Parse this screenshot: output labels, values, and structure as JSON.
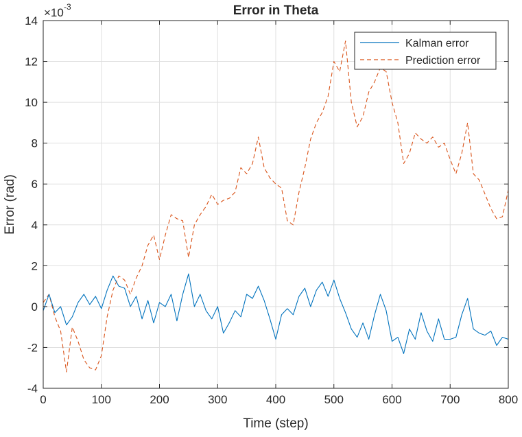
{
  "chart_data": {
    "type": "line",
    "title": "Error in Theta",
    "xlabel": "Time (step)",
    "ylabel": "Error (rad)",
    "y_exponent_label": "×10",
    "y_exponent_power": "-3",
    "xlim": [
      0,
      800
    ],
    "ylim": [
      -4,
      14
    ],
    "y_scale_note": "values in units of 1e-3 rad",
    "xticks": [
      "0",
      "100",
      "200",
      "300",
      "400",
      "500",
      "600",
      "700",
      "800"
    ],
    "yticks": [
      "-4",
      "-2",
      "0",
      "2",
      "4",
      "6",
      "8",
      "10",
      "12",
      "14"
    ],
    "grid": true,
    "legend_position": "top-right",
    "series": [
      {
        "name": "Kalman error",
        "color": "#0072BD",
        "style": "solid",
        "x": [
          0,
          10,
          20,
          30,
          40,
          50,
          60,
          70,
          80,
          90,
          100,
          110,
          120,
          130,
          140,
          150,
          160,
          170,
          180,
          190,
          200,
          210,
          220,
          230,
          240,
          250,
          260,
          270,
          280,
          290,
          300,
          310,
          320,
          330,
          340,
          350,
          360,
          370,
          380,
          390,
          400,
          410,
          420,
          430,
          440,
          450,
          460,
          470,
          480,
          490,
          500,
          510,
          520,
          530,
          540,
          550,
          560,
          570,
          580,
          590,
          600,
          610,
          620,
          630,
          640,
          650,
          660,
          670,
          680,
          690,
          700,
          710,
          720,
          730,
          740,
          750,
          760,
          770,
          780,
          790,
          800
        ],
        "values": [
          -0.2,
          0.6,
          -0.3,
          0.0,
          -0.9,
          -0.5,
          0.2,
          0.6,
          0.1,
          0.5,
          -0.1,
          0.8,
          1.5,
          1.0,
          0.9,
          0.0,
          0.5,
          -0.6,
          0.3,
          -0.8,
          0.2,
          0.0,
          0.6,
          -0.7,
          0.6,
          1.6,
          0.0,
          0.6,
          -0.2,
          -0.6,
          0.0,
          -1.3,
          -0.8,
          -0.2,
          -0.5,
          0.6,
          0.4,
          1.0,
          0.3,
          -0.6,
          -1.6,
          -0.4,
          -0.1,
          -0.4,
          0.5,
          0.9,
          0.0,
          0.8,
          1.2,
          0.5,
          1.3,
          0.4,
          -0.3,
          -1.1,
          -1.5,
          -0.8,
          -1.6,
          -0.4,
          0.6,
          -0.2,
          -1.7,
          -1.5,
          -2.3,
          -1.1,
          -1.6,
          -0.3,
          -1.2,
          -1.7,
          -0.6,
          -1.6,
          -1.6,
          -1.5,
          -0.4,
          0.4,
          -1.1,
          -1.3,
          -1.4,
          -1.2,
          -1.9,
          -1.5,
          -1.6
        ]
      },
      {
        "name": "Prediction error",
        "color": "#D95319",
        "style": "dashed",
        "x": [
          0,
          10,
          20,
          30,
          40,
          50,
          60,
          70,
          80,
          90,
          100,
          110,
          120,
          130,
          140,
          150,
          160,
          170,
          180,
          190,
          200,
          210,
          220,
          230,
          240,
          250,
          260,
          270,
          280,
          290,
          300,
          310,
          320,
          330,
          340,
          350,
          360,
          370,
          380,
          390,
          400,
          410,
          420,
          430,
          440,
          450,
          460,
          470,
          480,
          490,
          500,
          510,
          520,
          530,
          540,
          550,
          560,
          570,
          580,
          590,
          600,
          610,
          620,
          630,
          640,
          650,
          660,
          670,
          680,
          690,
          700,
          710,
          720,
          730,
          740,
          750,
          760,
          770,
          780,
          790,
          800
        ],
        "values": [
          0.2,
          0.6,
          -0.5,
          -1.2,
          -3.2,
          -1.0,
          -1.7,
          -2.6,
          -3.0,
          -3.1,
          -2.4,
          -0.5,
          0.8,
          1.5,
          1.3,
          0.6,
          1.4,
          2.0,
          3.0,
          3.5,
          2.3,
          3.5,
          4.5,
          4.3,
          4.2,
          2.4,
          4.0,
          4.5,
          4.9,
          5.5,
          5.0,
          5.2,
          5.3,
          5.6,
          6.8,
          6.5,
          7.0,
          8.3,
          6.8,
          6.3,
          6.0,
          5.8,
          4.2,
          4.0,
          5.6,
          6.8,
          8.2,
          9.0,
          9.5,
          10.3,
          12.0,
          11.5,
          13.0,
          10.0,
          8.8,
          9.3,
          10.5,
          11.0,
          11.7,
          11.5,
          10.0,
          9.0,
          7.0,
          7.5,
          8.5,
          8.2,
          8.0,
          8.3,
          7.8,
          8.0,
          7.2,
          6.5,
          7.5,
          9.0,
          6.5,
          6.2,
          5.5,
          4.8,
          4.3,
          4.4,
          5.7
        ]
      }
    ]
  }
}
